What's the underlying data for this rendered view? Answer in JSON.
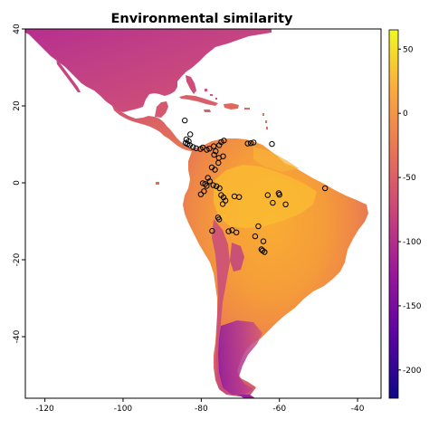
{
  "chart_data": {
    "type": "raster-map",
    "title": "Environmental similarity",
    "xlim": [
      -125,
      -34
    ],
    "ylim": [
      -56,
      40
    ],
    "x_ticks": [
      -120,
      -100,
      -80,
      -60,
      -40
    ],
    "x_tick_labels": [
      "-120",
      "-100",
      "-80",
      "-60",
      "-40"
    ],
    "y_ticks": [
      -40,
      -20,
      0,
      20,
      40
    ],
    "y_tick_labels": [
      "-40",
      "-20",
      "0",
      "20",
      "40"
    ],
    "legend": {
      "position": "right",
      "range": [
        -222,
        65
      ],
      "ticks": [
        50,
        0,
        -50,
        -100,
        -150,
        -200
      ],
      "tick_labels": [
        "50",
        "0",
        "-50",
        "-100",
        "-150",
        "-200"
      ],
      "colormap": [
        "#0d0887",
        "#5b02a3",
        "#9a179b",
        "#cb4679",
        "#eb7655",
        "#fbaf3c",
        "#f0f921"
      ]
    },
    "occurrence_points": [
      [
        -84.2,
        16.2
      ],
      [
        -82.8,
        12.6
      ],
      [
        -83.8,
        11.3
      ],
      [
        -83.2,
        10.8
      ],
      [
        -84.0,
        10.4
      ],
      [
        -83.5,
        10.1
      ],
      [
        -82.9,
        9.8
      ],
      [
        -82.1,
        9.3
      ],
      [
        -81.3,
        9.0
      ],
      [
        -79.6,
        9.2
      ],
      [
        -80.2,
        8.8
      ],
      [
        -78.6,
        8.6
      ],
      [
        -77.9,
        8.9
      ],
      [
        -76.8,
        9.5
      ],
      [
        -75.4,
        9.8
      ],
      [
        -74.9,
        10.6
      ],
      [
        -74.2,
        11.0
      ],
      [
        -76.3,
        8.2
      ],
      [
        -76.7,
        7.3
      ],
      [
        -75.5,
        6.5
      ],
      [
        -74.4,
        6.9
      ],
      [
        -75.6,
        5.2
      ],
      [
        -76.5,
        3.4
      ],
      [
        -77.3,
        4.0
      ],
      [
        -78.3,
        1.3
      ],
      [
        -77.8,
        0.4
      ],
      [
        -79.0,
        -0.3
      ],
      [
        -79.6,
        -0.1
      ],
      [
        -78.6,
        -0.8
      ],
      [
        -79.3,
        -2.2
      ],
      [
        -80.1,
        -3.0
      ],
      [
        -76.9,
        -0.6
      ],
      [
        -76.1,
        -0.9
      ],
      [
        -75.3,
        -1.4
      ],
      [
        -74.9,
        -3.2
      ],
      [
        -74.3,
        -3.8
      ],
      [
        -73.8,
        -4.6
      ],
      [
        -74.5,
        -5.5
      ],
      [
        -75.4,
        -9.5
      ],
      [
        -75.7,
        -9.0
      ],
      [
        -71.5,
        -3.5
      ],
      [
        -70.3,
        -3.7
      ],
      [
        -68.1,
        10.2
      ],
      [
        -67.3,
        10.3
      ],
      [
        -66.6,
        10.5
      ],
      [
        -61.9,
        10.1
      ],
      [
        -60.2,
        -2.7
      ],
      [
        -60.0,
        -3.1
      ],
      [
        -63.0,
        -3.2
      ],
      [
        -58.4,
        -5.6
      ],
      [
        -48.3,
        -1.4
      ],
      [
        -61.7,
        -5.2
      ],
      [
        -65.4,
        -11.3
      ],
      [
        -66.2,
        -13.9
      ],
      [
        -64.1,
        -15.2
      ],
      [
        -64.6,
        -17.3
      ],
      [
        -63.8,
        -18.0
      ],
      [
        -64.3,
        -17.6
      ],
      [
        -72.1,
        -12.3
      ],
      [
        -71.0,
        -12.9
      ],
      [
        -73.0,
        -12.6
      ],
      [
        -77.2,
        -12.5
      ]
    ]
  }
}
